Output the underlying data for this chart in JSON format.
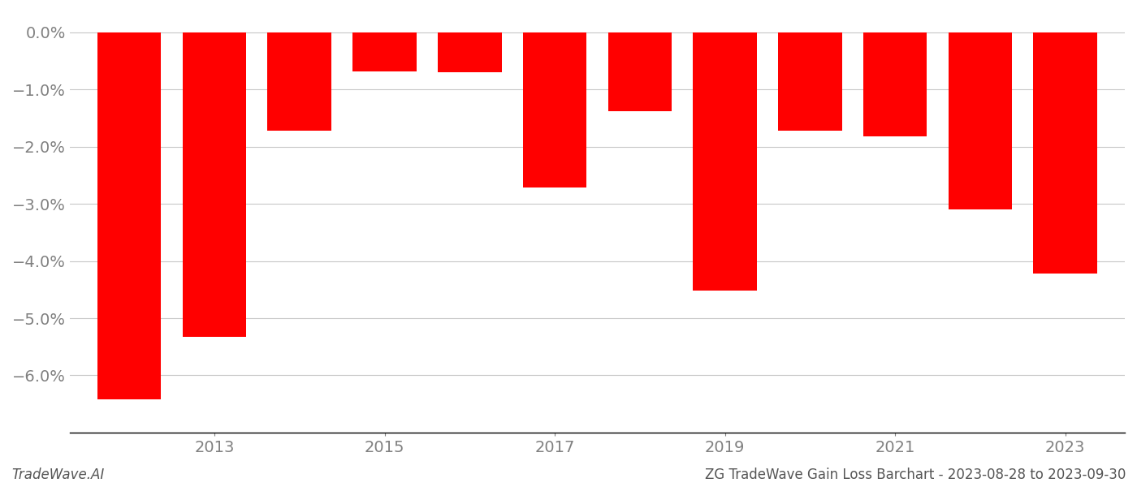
{
  "years": [
    2012,
    2013,
    2014,
    2015,
    2016,
    2017,
    2018,
    2019,
    2020,
    2021,
    2022,
    2023
  ],
  "values": [
    -6.42,
    -5.32,
    -1.72,
    -0.68,
    -0.7,
    -2.72,
    -1.38,
    -4.52,
    -1.72,
    -1.82,
    -3.1,
    -4.22
  ],
  "bar_color": "#ff0000",
  "background_color": "#ffffff",
  "tick_color": "#808080",
  "grid_color": "#c8c8c8",
  "ylim": [
    -7.0,
    0.35
  ],
  "yticks": [
    0.0,
    -1.0,
    -2.0,
    -3.0,
    -4.0,
    -5.0,
    -6.0
  ],
  "xtick_positions": [
    2013,
    2015,
    2017,
    2019,
    2021,
    2023
  ],
  "xlabel_fontsize": 14,
  "ylabel_fontsize": 14,
  "bar_width": 0.75,
  "footer_left": "TradeWave.AI",
  "footer_right": "ZG TradeWave Gain Loss Barchart - 2023-08-28 to 2023-09-30",
  "footer_fontsize": 12
}
